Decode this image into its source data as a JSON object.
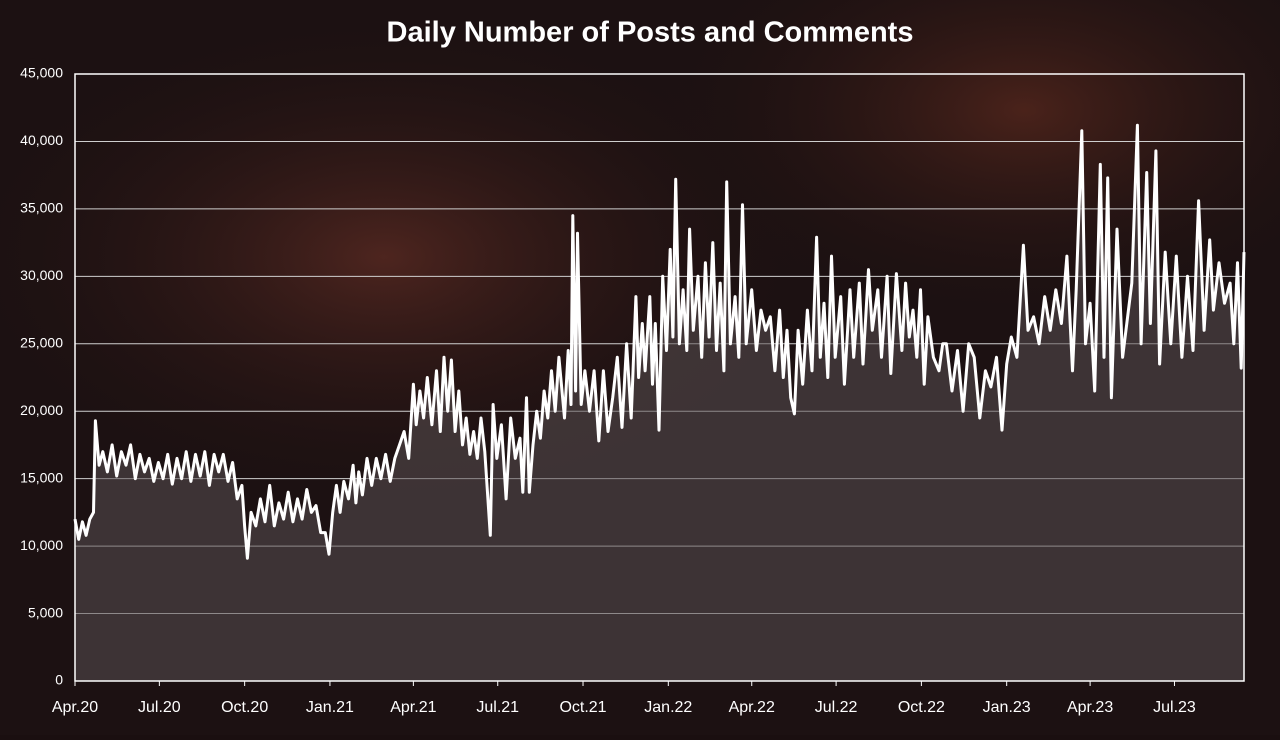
{
  "chart_data": {
    "type": "line",
    "title": "Daily Number of Posts and Comments",
    "x": [
      0,
      4,
      8,
      12,
      16,
      20,
      22,
      26,
      30,
      35,
      40,
      45,
      50,
      55,
      60,
      65,
      70,
      75,
      80,
      85,
      90,
      95,
      100,
      105,
      110,
      115,
      120,
      125,
      130,
      135,
      140,
      145,
      150,
      155,
      160,
      165,
      170,
      175,
      180,
      183,
      186,
      190,
      195,
      200,
      205,
      210,
      215,
      220,
      225,
      230,
      235,
      240,
      245,
      250,
      255,
      260,
      265,
      270,
      274,
      278,
      282,
      286,
      290,
      295,
      300,
      303,
      306,
      310,
      315,
      320,
      325,
      330,
      335,
      340,
      345,
      350,
      355,
      360,
      365,
      368,
      372,
      376,
      380,
      385,
      390,
      394,
      398,
      402,
      406,
      410,
      414,
      418,
      422,
      426,
      430,
      434,
      438,
      442,
      448,
      451,
      455,
      460,
      465,
      470,
      475,
      480,
      483,
      487,
      490,
      494,
      498,
      502,
      506,
      510,
      514,
      518,
      522,
      528,
      532,
      535,
      537,
      540,
      542,
      546,
      550,
      555,
      560,
      565,
      570,
      575,
      580,
      585,
      590,
      595,
      600,
      605,
      608,
      612,
      615,
      620,
      623,
      626,
      630,
      634,
      638,
      642,
      645,
      648,
      652,
      656,
      660,
      663,
      667,
      672,
      676,
      680,
      684,
      688,
      692,
      696,
      700,
      703,
      707,
      712,
      716,
      720,
      724,
      730,
      735,
      740,
      745,
      750,
      755,
      760,
      764,
      768,
      772,
      776,
      780,
      785,
      790,
      795,
      800,
      804,
      808,
      812,
      816,
      820,
      826,
      830,
      836,
      840,
      846,
      850,
      856,
      860,
      866,
      870,
      876,
      880,
      886,
      892,
      896,
      900,
      904,
      908,
      912,
      916,
      920,
      926,
      932,
      936,
      940,
      946,
      952,
      958,
      964,
      970,
      976,
      982,
      988,
      994,
      1000,
      1005,
      1010,
      1016,
      1023,
      1028,
      1034,
      1040,
      1046,
      1052,
      1058,
      1064,
      1070,
      1076,
      1080,
      1086,
      1090,
      1095,
      1100,
      1106,
      1110,
      1114,
      1118,
      1124,
      1130,
      1140,
      1146,
      1150,
      1156,
      1160,
      1166,
      1170,
      1176,
      1182,
      1188,
      1194,
      1200,
      1206,
      1212,
      1218,
      1224,
      1228,
      1234,
      1240,
      1246,
      1250,
      1254,
      1258,
      1261
    ],
    "series": [
      {
        "color": "#ffffff",
        "values": [
          12000,
          10500,
          11800,
          10800,
          12000,
          12500,
          19300,
          16000,
          17000,
          15500,
          17500,
          15200,
          17000,
          16000,
          17500,
          15000,
          16800,
          15500,
          16500,
          14800,
          16200,
          15000,
          16800,
          14600,
          16500,
          15000,
          17000,
          14800,
          16800,
          15200,
          17000,
          14500,
          16800,
          15500,
          16800,
          14800,
          16200,
          13500,
          14500,
          11500,
          9100,
          12500,
          11500,
          13500,
          11800,
          14500,
          11500,
          13200,
          12000,
          14000,
          11800,
          13500,
          12000,
          14200,
          12500,
          13000,
          11000,
          11000,
          9400,
          12500,
          14500,
          12500,
          14800,
          13500,
          16000,
          13200,
          15500,
          13800,
          16500,
          14500,
          16500,
          15000,
          16800,
          14800,
          16500,
          17500,
          18500,
          16500,
          22000,
          19000,
          21500,
          19500,
          22500,
          19000,
          23000,
          18500,
          24000,
          20000,
          23800,
          18500,
          21500,
          17500,
          19500,
          16800,
          18500,
          16500,
          19500,
          17000,
          10800,
          20500,
          16500,
          19000,
          13500,
          19500,
          16500,
          18000,
          14000,
          21000,
          14000,
          17500,
          20000,
          18000,
          21500,
          19500,
          23000,
          20000,
          24000,
          19500,
          24500,
          20500,
          34500,
          21500,
          33200,
          20500,
          23000,
          20000,
          23000,
          17800,
          23000,
          18500,
          21000,
          24000,
          18800,
          25000,
          19500,
          28500,
          22500,
          26500,
          23000,
          28500,
          22000,
          26500,
          18600,
          30000,
          24500,
          32000,
          25500,
          37200,
          25000,
          29000,
          24500,
          33500,
          26000,
          30000,
          24000,
          31000,
          25500,
          32500,
          24500,
          29500,
          23000,
          37000,
          25000,
          28500,
          24000,
          35300,
          25000,
          29000,
          24500,
          27500,
          26000,
          27000,
          23000,
          27500,
          22500,
          26000,
          21000,
          19800,
          26000,
          22000,
          27500,
          23000,
          32900,
          24000,
          28000,
          22500,
          31500,
          24000,
          28500,
          22000,
          29000,
          24000,
          29500,
          23500,
          30500,
          26000,
          29000,
          24000,
          30000,
          22800,
          30200,
          24500,
          29500,
          25500,
          27500,
          24000,
          29000,
          22000,
          27000,
          24000,
          23000,
          25000,
          25000,
          21500,
          24500,
          20000,
          25000,
          24000,
          19500,
          23000,
          21800,
          24000,
          18600,
          23500,
          25500,
          24000,
          32300,
          26000,
          27000,
          25000,
          28500,
          26000,
          29000,
          26500,
          31500,
          23000,
          29000,
          40800,
          25000,
          28000,
          21500,
          38300,
          24000,
          37300,
          21000,
          33500,
          24000,
          29500,
          41200,
          25000,
          37700,
          26500,
          39300,
          23500,
          31800,
          25000,
          31500,
          24000,
          30000,
          24500,
          35600,
          26000,
          32700,
          27500,
          31000,
          28000,
          29500,
          25000,
          31000,
          23200,
          31800
        ]
      }
    ],
    "xlim": [
      0,
      1261
    ],
    "xticks": [
      {
        "value": 0,
        "label": "Apr.20"
      },
      {
        "value": 91,
        "label": "Jul.20"
      },
      {
        "value": 183,
        "label": "Oct.20"
      },
      {
        "value": 275,
        "label": "Jan.21"
      },
      {
        "value": 365,
        "label": "Apr.21"
      },
      {
        "value": 456,
        "label": "Jul.21"
      },
      {
        "value": 548,
        "label": "Oct.21"
      },
      {
        "value": 640,
        "label": "Jan.22"
      },
      {
        "value": 730,
        "label": "Apr.22"
      },
      {
        "value": 821,
        "label": "Jul.22"
      },
      {
        "value": 913,
        "label": "Oct.22"
      },
      {
        "value": 1005,
        "label": "Jan.23"
      },
      {
        "value": 1095,
        "label": "Apr.23"
      },
      {
        "value": 1186,
        "label": "Jul.23"
      }
    ],
    "ylim": [
      0,
      45000
    ],
    "yticks": [
      0,
      {
        "value": 5000,
        "label": "5,000"
      },
      {
        "value": 10000,
        "label": "10,000"
      },
      {
        "value": 15000,
        "label": "15,000"
      },
      {
        "value": 20000,
        "label": "20,000"
      },
      {
        "value": 25000,
        "label": "25,000"
      },
      {
        "value": 30000,
        "label": "30,000"
      },
      {
        "value": 35000,
        "label": "35,000"
      },
      {
        "value": 40000,
        "label": "40,000"
      },
      {
        "value": 45000,
        "label": "45,000"
      }
    ],
    "grid": true
  }
}
